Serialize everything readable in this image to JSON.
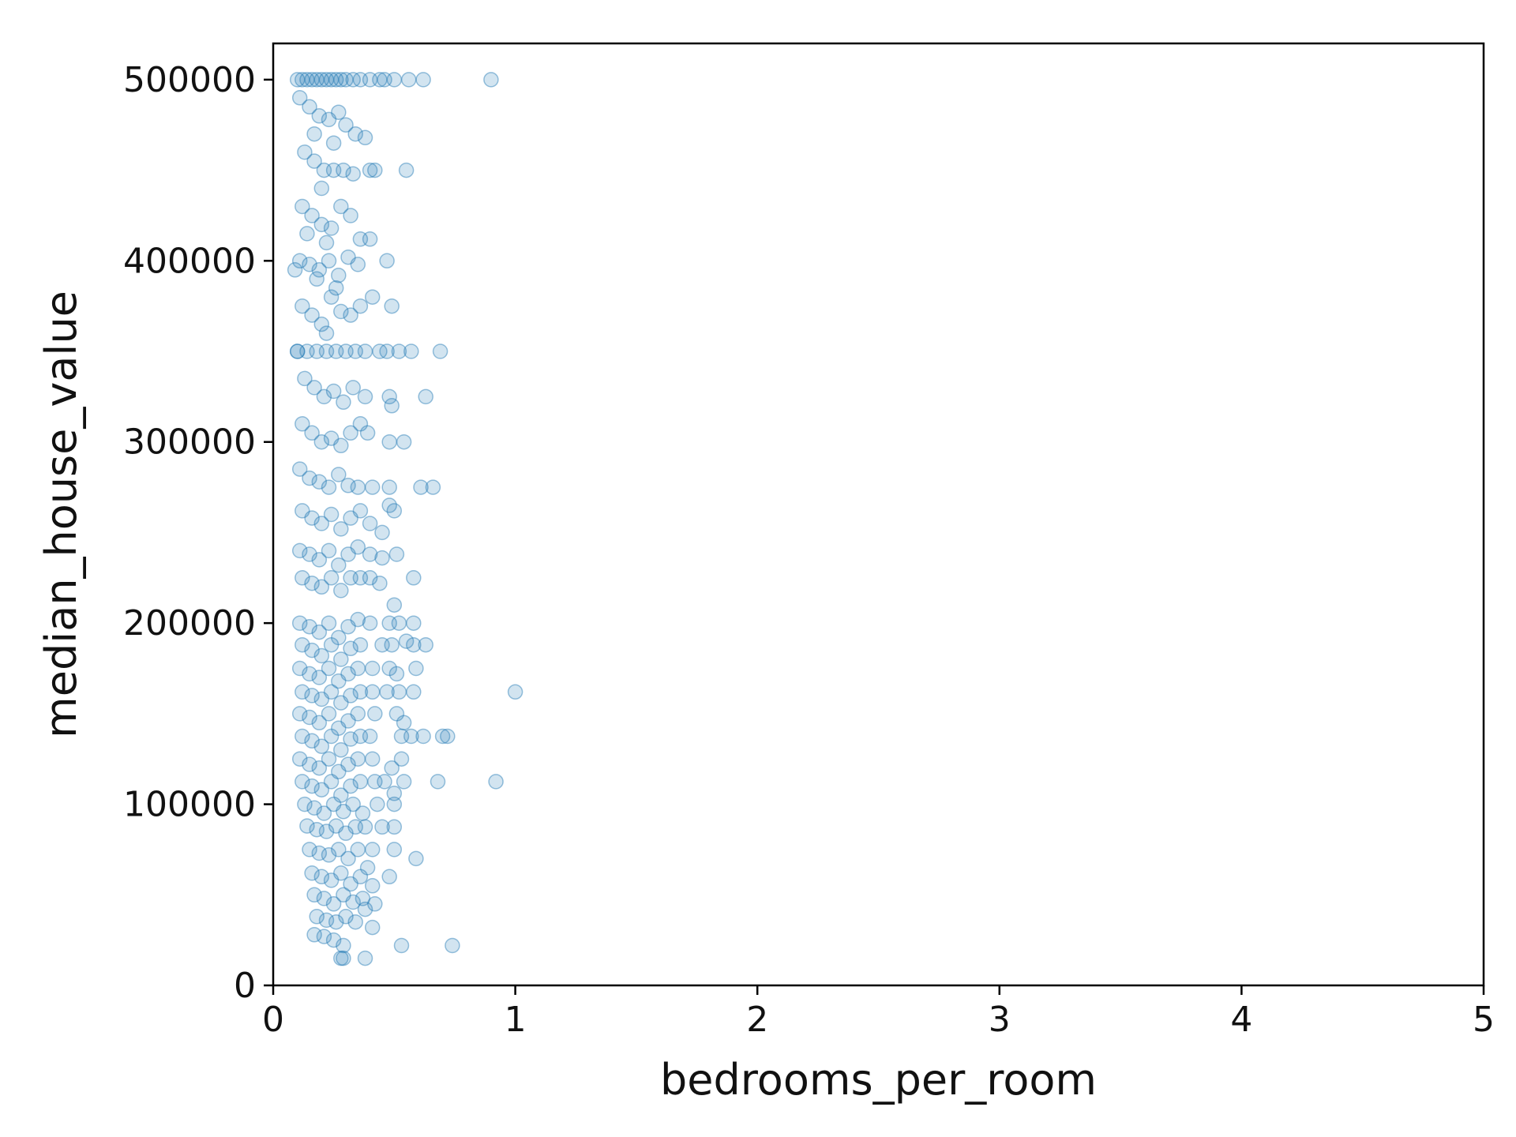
{
  "chart_data": {
    "type": "scatter",
    "title": "",
    "xlabel": "bedrooms_per_room",
    "ylabel": "median_house_value",
    "xlim": [
      0,
      5
    ],
    "ylim": [
      0,
      520000
    ],
    "x_ticks": [
      0,
      1,
      2,
      3,
      4,
      5
    ],
    "x_tick_labels": [
      "0",
      "1",
      "2",
      "3",
      "4",
      "5"
    ],
    "y_ticks": [
      0,
      100000,
      200000,
      300000,
      400000,
      500000
    ],
    "y_tick_labels": [
      "0",
      "100000",
      "200000",
      "300000",
      "400000",
      "500000"
    ],
    "grid": false,
    "legend": "none",
    "marker": {
      "color": "#1f77b4",
      "alpha": 0.2,
      "shape": "circle"
    },
    "points": [
      [
        0.1,
        500001
      ],
      [
        0.12,
        500001
      ],
      [
        0.14,
        500001
      ],
      [
        0.16,
        500001
      ],
      [
        0.18,
        500001
      ],
      [
        0.2,
        500001
      ],
      [
        0.22,
        500001
      ],
      [
        0.24,
        500001
      ],
      [
        0.26,
        500001
      ],
      [
        0.28,
        500001
      ],
      [
        0.3,
        500001
      ],
      [
        0.33,
        500001
      ],
      [
        0.36,
        500001
      ],
      [
        0.4,
        500001
      ],
      [
        0.44,
        500001
      ],
      [
        0.46,
        500001
      ],
      [
        0.5,
        500001
      ],
      [
        0.56,
        500001
      ],
      [
        0.62,
        500001
      ],
      [
        0.9,
        500001
      ],
      [
        0.11,
        490000
      ],
      [
        0.15,
        485000
      ],
      [
        0.19,
        480000
      ],
      [
        0.23,
        478000
      ],
      [
        0.27,
        482000
      ],
      [
        0.3,
        475000
      ],
      [
        0.34,
        470000
      ],
      [
        0.38,
        468000
      ],
      [
        0.25,
        465000
      ],
      [
        0.17,
        470000
      ],
      [
        0.13,
        460000
      ],
      [
        0.17,
        455000
      ],
      [
        0.21,
        450000
      ],
      [
        0.25,
        450000
      ],
      [
        0.29,
        450000
      ],
      [
        0.33,
        448000
      ],
      [
        0.4,
        450000
      ],
      [
        0.42,
        450000
      ],
      [
        0.55,
        450000
      ],
      [
        0.2,
        440000
      ],
      [
        0.12,
        430000
      ],
      [
        0.16,
        425000
      ],
      [
        0.2,
        420000
      ],
      [
        0.24,
        418000
      ],
      [
        0.28,
        430000
      ],
      [
        0.32,
        425000
      ],
      [
        0.36,
        412000
      ],
      [
        0.4,
        412000
      ],
      [
        0.22,
        410000
      ],
      [
        0.14,
        415000
      ],
      [
        0.11,
        400000
      ],
      [
        0.15,
        398000
      ],
      [
        0.19,
        395000
      ],
      [
        0.23,
        400000
      ],
      [
        0.27,
        392000
      ],
      [
        0.31,
        402000
      ],
      [
        0.35,
        398000
      ],
      [
        0.47,
        400000
      ],
      [
        0.18,
        390000
      ],
      [
        0.26,
        385000
      ],
      [
        0.12,
        375000
      ],
      [
        0.16,
        370000
      ],
      [
        0.2,
        365000
      ],
      [
        0.24,
        380000
      ],
      [
        0.28,
        372000
      ],
      [
        0.32,
        370000
      ],
      [
        0.36,
        375000
      ],
      [
        0.41,
        380000
      ],
      [
        0.49,
        375000
      ],
      [
        0.22,
        360000
      ],
      [
        0.1,
        350000
      ],
      [
        0.14,
        350000
      ],
      [
        0.18,
        350000
      ],
      [
        0.22,
        350000
      ],
      [
        0.26,
        350000
      ],
      [
        0.3,
        350000
      ],
      [
        0.34,
        350000
      ],
      [
        0.38,
        350000
      ],
      [
        0.44,
        350000
      ],
      [
        0.47,
        350000
      ],
      [
        0.52,
        350000
      ],
      [
        0.57,
        350000
      ],
      [
        0.69,
        350000
      ],
      [
        0.13,
        335000
      ],
      [
        0.17,
        330000
      ],
      [
        0.21,
        325000
      ],
      [
        0.25,
        328000
      ],
      [
        0.29,
        322000
      ],
      [
        0.33,
        330000
      ],
      [
        0.38,
        325000
      ],
      [
        0.48,
        325000
      ],
      [
        0.49,
        320000
      ],
      [
        0.63,
        325000
      ],
      [
        0.12,
        310000
      ],
      [
        0.16,
        305000
      ],
      [
        0.2,
        300000
      ],
      [
        0.24,
        302000
      ],
      [
        0.28,
        298000
      ],
      [
        0.32,
        305000
      ],
      [
        0.36,
        310000
      ],
      [
        0.39,
        305000
      ],
      [
        0.48,
        300000
      ],
      [
        0.54,
        300000
      ],
      [
        0.11,
        285000
      ],
      [
        0.15,
        280000
      ],
      [
        0.19,
        278000
      ],
      [
        0.23,
        275000
      ],
      [
        0.27,
        282000
      ],
      [
        0.31,
        276000
      ],
      [
        0.35,
        275000
      ],
      [
        0.41,
        275000
      ],
      [
        0.48,
        275000
      ],
      [
        0.61,
        275000
      ],
      [
        0.66,
        275000
      ],
      [
        0.12,
        262000
      ],
      [
        0.16,
        258000
      ],
      [
        0.2,
        255000
      ],
      [
        0.24,
        260000
      ],
      [
        0.28,
        252000
      ],
      [
        0.32,
        258000
      ],
      [
        0.36,
        262000
      ],
      [
        0.4,
        255000
      ],
      [
        0.45,
        250000
      ],
      [
        0.48,
        265000
      ],
      [
        0.5,
        262000
      ],
      [
        0.11,
        240000
      ],
      [
        0.15,
        238000
      ],
      [
        0.19,
        235000
      ],
      [
        0.23,
        240000
      ],
      [
        0.27,
        232000
      ],
      [
        0.31,
        238000
      ],
      [
        0.35,
        242000
      ],
      [
        0.4,
        238000
      ],
      [
        0.45,
        236000
      ],
      [
        0.51,
        238000
      ],
      [
        0.12,
        225000
      ],
      [
        0.16,
        222000
      ],
      [
        0.2,
        220000
      ],
      [
        0.24,
        225000
      ],
      [
        0.28,
        218000
      ],
      [
        0.32,
        225000
      ],
      [
        0.36,
        225000
      ],
      [
        0.4,
        225000
      ],
      [
        0.44,
        222000
      ],
      [
        0.58,
        225000
      ],
      [
        0.5,
        210000
      ],
      [
        0.11,
        200000
      ],
      [
        0.15,
        198000
      ],
      [
        0.19,
        195000
      ],
      [
        0.23,
        200000
      ],
      [
        0.27,
        192000
      ],
      [
        0.31,
        198000
      ],
      [
        0.35,
        202000
      ],
      [
        0.4,
        200000
      ],
      [
        0.48,
        200000
      ],
      [
        0.52,
        200000
      ],
      [
        0.58,
        200000
      ],
      [
        0.12,
        188000
      ],
      [
        0.16,
        185000
      ],
      [
        0.2,
        182000
      ],
      [
        0.24,
        188000
      ],
      [
        0.28,
        180000
      ],
      [
        0.32,
        186000
      ],
      [
        0.36,
        188000
      ],
      [
        0.45,
        188000
      ],
      [
        0.49,
        188000
      ],
      [
        0.55,
        190000
      ],
      [
        0.58,
        188000
      ],
      [
        0.63,
        188000
      ],
      [
        0.11,
        175000
      ],
      [
        0.15,
        172000
      ],
      [
        0.19,
        170000
      ],
      [
        0.23,
        175000
      ],
      [
        0.27,
        168000
      ],
      [
        0.31,
        172000
      ],
      [
        0.35,
        175000
      ],
      [
        0.41,
        175000
      ],
      [
        0.48,
        175000
      ],
      [
        0.59,
        175000
      ],
      [
        0.51,
        172000
      ],
      [
        0.12,
        162000
      ],
      [
        0.16,
        160000
      ],
      [
        0.2,
        158000
      ],
      [
        0.24,
        162000
      ],
      [
        0.28,
        156000
      ],
      [
        0.32,
        160000
      ],
      [
        0.36,
        162000
      ],
      [
        0.41,
        162000
      ],
      [
        0.47,
        162000
      ],
      [
        0.52,
        162000
      ],
      [
        0.58,
        162000
      ],
      [
        1.0,
        162000
      ],
      [
        0.11,
        150000
      ],
      [
        0.15,
        148000
      ],
      [
        0.19,
        145000
      ],
      [
        0.23,
        150000
      ],
      [
        0.27,
        142000
      ],
      [
        0.31,
        146000
      ],
      [
        0.35,
        150000
      ],
      [
        0.42,
        150000
      ],
      [
        0.51,
        150000
      ],
      [
        0.54,
        145000
      ],
      [
        0.12,
        137500
      ],
      [
        0.16,
        135000
      ],
      [
        0.2,
        132000
      ],
      [
        0.24,
        137500
      ],
      [
        0.28,
        130000
      ],
      [
        0.32,
        136000
      ],
      [
        0.36,
        137500
      ],
      [
        0.4,
        137500
      ],
      [
        0.53,
        137500
      ],
      [
        0.57,
        137500
      ],
      [
        0.62,
        137500
      ],
      [
        0.7,
        137500
      ],
      [
        0.72,
        137500
      ],
      [
        0.11,
        125000
      ],
      [
        0.15,
        122000
      ],
      [
        0.19,
        120000
      ],
      [
        0.23,
        125000
      ],
      [
        0.27,
        118000
      ],
      [
        0.31,
        122000
      ],
      [
        0.35,
        125000
      ],
      [
        0.41,
        125000
      ],
      [
        0.49,
        120000
      ],
      [
        0.53,
        125000
      ],
      [
        0.12,
        112500
      ],
      [
        0.16,
        110000
      ],
      [
        0.2,
        108000
      ],
      [
        0.24,
        112500
      ],
      [
        0.28,
        105000
      ],
      [
        0.32,
        110000
      ],
      [
        0.36,
        112500
      ],
      [
        0.42,
        112500
      ],
      [
        0.46,
        112500
      ],
      [
        0.54,
        112500
      ],
      [
        0.68,
        112500
      ],
      [
        0.92,
        112500
      ],
      [
        0.5,
        106000
      ],
      [
        0.13,
        100000
      ],
      [
        0.17,
        98000
      ],
      [
        0.21,
        95000
      ],
      [
        0.25,
        100000
      ],
      [
        0.29,
        96000
      ],
      [
        0.33,
        100000
      ],
      [
        0.37,
        95000
      ],
      [
        0.43,
        100000
      ],
      [
        0.5,
        100000
      ],
      [
        0.14,
        88000
      ],
      [
        0.18,
        86000
      ],
      [
        0.22,
        85000
      ],
      [
        0.26,
        88000
      ],
      [
        0.3,
        84000
      ],
      [
        0.34,
        87500
      ],
      [
        0.38,
        87500
      ],
      [
        0.45,
        87500
      ],
      [
        0.5,
        87500
      ],
      [
        0.15,
        75000
      ],
      [
        0.19,
        73000
      ],
      [
        0.23,
        72000
      ],
      [
        0.27,
        75000
      ],
      [
        0.31,
        70000
      ],
      [
        0.35,
        75000
      ],
      [
        0.41,
        75000
      ],
      [
        0.5,
        75000
      ],
      [
        0.59,
        70000
      ],
      [
        0.16,
        62000
      ],
      [
        0.2,
        60000
      ],
      [
        0.24,
        58000
      ],
      [
        0.28,
        62000
      ],
      [
        0.32,
        56000
      ],
      [
        0.36,
        60000
      ],
      [
        0.41,
        55000
      ],
      [
        0.48,
        60000
      ],
      [
        0.39,
        65000
      ],
      [
        0.17,
        50000
      ],
      [
        0.21,
        48000
      ],
      [
        0.25,
        45000
      ],
      [
        0.29,
        50000
      ],
      [
        0.33,
        46000
      ],
      [
        0.37,
        48000
      ],
      [
        0.42,
        45000
      ],
      [
        0.18,
        38000
      ],
      [
        0.22,
        36000
      ],
      [
        0.26,
        35000
      ],
      [
        0.3,
        38000
      ],
      [
        0.34,
        35000
      ],
      [
        0.41,
        32000
      ],
      [
        0.38,
        42000
      ],
      [
        0.17,
        28000
      ],
      [
        0.21,
        27000
      ],
      [
        0.25,
        25000
      ],
      [
        0.29,
        22000
      ],
      [
        0.53,
        22000
      ],
      [
        0.74,
        22000
      ],
      [
        0.28,
        15000
      ],
      [
        0.29,
        15000
      ],
      [
        0.38,
        15000
      ],
      [
        0.1,
        350000
      ],
      [
        0.09,
        395000
      ]
    ]
  }
}
